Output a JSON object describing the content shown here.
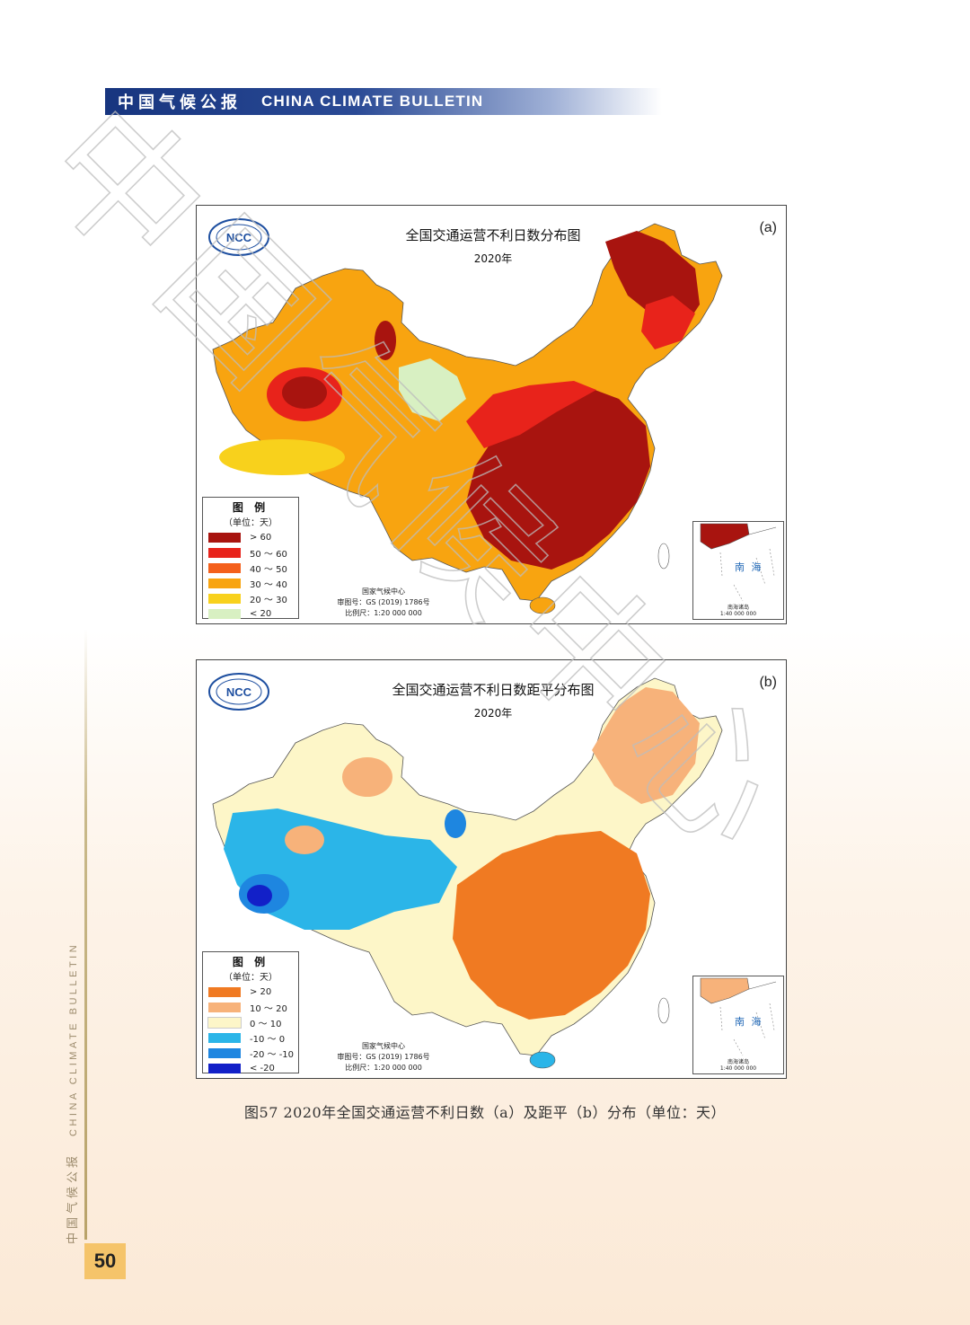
{
  "header": {
    "title_cn": "中国气候公报",
    "title_en": "CHINA CLIMATE BULLETIN"
  },
  "sidebar": {
    "text_cn": "中国气候公报",
    "text_en": "CHINA CLIMATE BULLETIN"
  },
  "page_number": "50",
  "watermark": "中国气候中心",
  "map_a": {
    "label": "(a)",
    "title": "全国交通运营不利日数分布图",
    "year": "2020年",
    "legend_title": "图 例",
    "legend_unit": "（单位：天）",
    "legend": [
      {
        "label": "> 60",
        "color": "#a8140f"
      },
      {
        "label": "50 ～ 60",
        "color": "#e8231b"
      },
      {
        "label": "40 ～ 50",
        "color": "#f4601c"
      },
      {
        "label": "30 ～ 40",
        "color": "#f8a410"
      },
      {
        "label": "20 ～ 30",
        "color": "#f8d11c"
      },
      {
        "label": "< 20",
        "color": "#d8f0c2"
      }
    ],
    "credit_1": "国家气候中心",
    "credit_2": "审图号：GS (2019) 1786号",
    "credit_3": "比例尺：1:20 000 000",
    "inset_label": "南 海",
    "inset_caption_1": "南海诸岛",
    "inset_caption_2": "1:40 000 000"
  },
  "map_b": {
    "label": "(b)",
    "title": "全国交通运营不利日数距平分布图",
    "year": "2020年",
    "legend_title": "图 例",
    "legend_unit": "（单位：天）",
    "legend": [
      {
        "label": "> 20",
        "color": "#f07a22"
      },
      {
        "label": "10 ～ 20",
        "color": "#f7b27a"
      },
      {
        "label": "0 ～ 10",
        "color": "#fdf6c8"
      },
      {
        "label": "-10 ～ 0",
        "color": "#2bb5e8"
      },
      {
        "label": "-20 ～ -10",
        "color": "#1e86e0"
      },
      {
        "label": "< -20",
        "color": "#1220c8"
      }
    ],
    "credit_1": "国家气候中心",
    "credit_2": "审图号：GS (2019) 1786号",
    "credit_3": "比例尺：1:20 000 000",
    "inset_label": "南 海",
    "inset_caption_1": "南海诸岛",
    "inset_caption_2": "1:40 000 000"
  },
  "caption": "图57  2020年全国交通运营不利日数（a）及距平（b）分布（单位：天）"
}
